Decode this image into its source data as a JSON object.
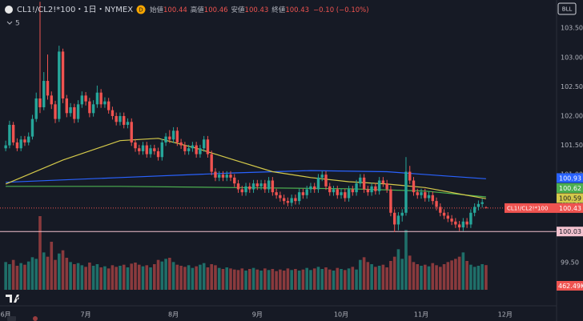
{
  "chart_data": {
    "type": "candlestick",
    "title": "CL1!/CL2!*100・1日・NYMEX",
    "interval_badge": "D",
    "indicator_count": "5",
    "corner_label": "BLL",
    "symbol": "CL1!/CL2!*100",
    "ohlc_labels": [
      "始値",
      "高値",
      "安値",
      "終値"
    ],
    "change": "−0.10 (−0.10%)",
    "colors": {
      "up": "#26a69a",
      "down": "#ef5350",
      "up_volume": "#1f6f69",
      "down_volume": "#8a3a3d",
      "hline": "#f3c2cf"
    },
    "xlim": [
      -1.5,
      144.5
    ],
    "xticks": [
      {
        "value": 0,
        "label": "6月"
      },
      {
        "value": 21,
        "label": "7月"
      },
      {
        "value": 44,
        "label": "8月"
      },
      {
        "value": 66,
        "label": "9月"
      },
      {
        "value": 88,
        "label": "10月"
      },
      {
        "value": 109,
        "label": "11月"
      },
      {
        "value": 131,
        "label": "12月"
      }
    ],
    "ylim": [
      98.79,
      103.98
    ],
    "yticks": [
      {
        "value": 99.5,
        "label": "99.50"
      },
      {
        "value": 100,
        "label": "100.00"
      },
      {
        "value": 100.5,
        "label": "100.50"
      },
      {
        "value": 101,
        "label": "101.00"
      },
      {
        "value": 101.5,
        "label": "101.50"
      },
      {
        "value": 102,
        "label": "102.00"
      },
      {
        "value": 102.5,
        "label": "102.50"
      },
      {
        "value": 103,
        "label": "103.00"
      },
      {
        "value": 103.5,
        "label": "103.50"
      }
    ],
    "grid": true,
    "hline": 100.03,
    "ohlc": [
      [
        101.45,
        101.58,
        101.4,
        101.5
      ],
      [
        101.5,
        101.92,
        101.45,
        101.85
      ],
      [
        101.85,
        101.9,
        101.5,
        101.55
      ],
      [
        101.55,
        101.62,
        101.4,
        101.45
      ],
      [
        101.45,
        101.66,
        101.4,
        101.6
      ],
      [
        101.6,
        101.66,
        101.49,
        101.55
      ],
      [
        101.55,
        101.72,
        101.5,
        101.65
      ],
      [
        101.65,
        102.02,
        101.6,
        101.95
      ],
      [
        101.95,
        102.4,
        101.9,
        102.3
      ],
      [
        102.3,
        103.95,
        102.05,
        102.15
      ],
      [
        102.15,
        102.75,
        102.1,
        102.6
      ],
      [
        102.6,
        103.05,
        102.28,
        102.35
      ],
      [
        102.35,
        102.42,
        102.12,
        102.2
      ],
      [
        102.2,
        102.26,
        101.88,
        101.95
      ],
      [
        101.95,
        103.2,
        101.9,
        103.1
      ],
      [
        103.1,
        103.15,
        102.22,
        102.3
      ],
      [
        102.3,
        102.36,
        101.98,
        102.05
      ],
      [
        102.05,
        102.22,
        101.99,
        102.15
      ],
      [
        102.15,
        102.21,
        101.88,
        101.95
      ],
      [
        101.95,
        102.27,
        101.89,
        102.2
      ],
      [
        102.2,
        102.42,
        102.14,
        102.35
      ],
      [
        102.35,
        102.41,
        102.18,
        102.25
      ],
      [
        102.25,
        102.31,
        101.98,
        102.05
      ],
      [
        102.05,
        102.27,
        101.99,
        102.2
      ],
      [
        102.2,
        102.52,
        102.14,
        102.4
      ],
      [
        102.4,
        102.46,
        102.14,
        102.2
      ],
      [
        102.2,
        102.32,
        102.14,
        102.25
      ],
      [
        102.25,
        102.31,
        102.04,
        102.1
      ],
      [
        102.1,
        102.16,
        101.94,
        102.0
      ],
      [
        102.0,
        102.06,
        101.84,
        101.9
      ],
      [
        101.9,
        102.06,
        101.84,
        102.0
      ],
      [
        102.0,
        102.06,
        101.79,
        101.85
      ],
      [
        101.85,
        101.96,
        101.79,
        101.9
      ],
      [
        101.9,
        101.96,
        101.49,
        101.55
      ],
      [
        101.55,
        101.61,
        101.39,
        101.45
      ],
      [
        101.45,
        101.51,
        101.34,
        101.4
      ],
      [
        101.4,
        101.56,
        101.34,
        101.5
      ],
      [
        101.5,
        101.56,
        101.29,
        101.35
      ],
      [
        101.35,
        101.51,
        101.29,
        101.45
      ],
      [
        101.45,
        101.51,
        101.34,
        101.4
      ],
      [
        101.4,
        101.46,
        101.24,
        101.3
      ],
      [
        101.3,
        101.61,
        101.24,
        101.55
      ],
      [
        101.55,
        101.71,
        101.49,
        101.65
      ],
      [
        101.65,
        101.76,
        101.54,
        101.6
      ],
      [
        101.6,
        101.81,
        101.54,
        101.75
      ],
      [
        101.75,
        101.81,
        101.49,
        101.55
      ],
      [
        101.55,
        101.61,
        101.44,
        101.5
      ],
      [
        101.5,
        101.56,
        101.34,
        101.4
      ],
      [
        101.4,
        101.51,
        101.34,
        101.45
      ],
      [
        101.45,
        101.56,
        101.39,
        101.5
      ],
      [
        101.5,
        101.56,
        101.29,
        101.35
      ],
      [
        101.35,
        101.51,
        101.29,
        101.45
      ],
      [
        101.45,
        101.66,
        101.39,
        101.6
      ],
      [
        101.6,
        101.66,
        101.29,
        101.35
      ],
      [
        101.35,
        101.41,
        100.99,
        101.05
      ],
      [
        101.05,
        101.11,
        100.89,
        100.95
      ],
      [
        100.95,
        101.06,
        100.89,
        101.0
      ],
      [
        101.0,
        101.06,
        100.89,
        100.95
      ],
      [
        100.95,
        101.06,
        100.89,
        101.0
      ],
      [
        101.0,
        101.06,
        100.89,
        100.95
      ],
      [
        100.95,
        101.01,
        100.79,
        100.85
      ],
      [
        100.85,
        100.91,
        100.69,
        100.75
      ],
      [
        100.75,
        100.81,
        100.64,
        100.7
      ],
      [
        100.7,
        100.86,
        100.64,
        100.8
      ],
      [
        100.8,
        100.86,
        100.69,
        100.75
      ],
      [
        100.75,
        100.91,
        100.69,
        100.85
      ],
      [
        100.85,
        100.91,
        100.74,
        100.8
      ],
      [
        100.8,
        100.91,
        100.74,
        100.85
      ],
      [
        100.85,
        100.91,
        100.69,
        100.75
      ],
      [
        100.75,
        100.96,
        100.69,
        100.9
      ],
      [
        100.9,
        100.96,
        100.64,
        100.7
      ],
      [
        100.7,
        100.76,
        100.59,
        100.65
      ],
      [
        100.65,
        100.71,
        100.54,
        100.6
      ],
      [
        100.6,
        100.66,
        100.49,
        100.55
      ],
      [
        100.55,
        100.61,
        100.46,
        100.52
      ],
      [
        100.52,
        100.66,
        100.46,
        100.6
      ],
      [
        100.6,
        100.66,
        100.49,
        100.55
      ],
      [
        100.55,
        100.76,
        100.49,
        100.7
      ],
      [
        100.7,
        100.76,
        100.59,
        100.65
      ],
      [
        100.65,
        100.81,
        100.59,
        100.75
      ],
      [
        100.75,
        100.86,
        100.69,
        100.8
      ],
      [
        100.8,
        100.86,
        100.69,
        100.75
      ],
      [
        100.75,
        101.01,
        100.69,
        100.95
      ],
      [
        100.95,
        101.06,
        100.89,
        101.0
      ],
      [
        101.0,
        101.06,
        100.74,
        100.8
      ],
      [
        100.8,
        100.86,
        100.64,
        100.7
      ],
      [
        100.7,
        100.81,
        100.64,
        100.75
      ],
      [
        100.75,
        100.81,
        100.59,
        100.65
      ],
      [
        100.65,
        100.76,
        100.59,
        100.7
      ],
      [
        100.7,
        100.76,
        100.54,
        100.6
      ],
      [
        100.6,
        100.81,
        100.54,
        100.75
      ],
      [
        100.75,
        100.81,
        100.64,
        100.7
      ],
      [
        100.7,
        100.91,
        100.64,
        100.85
      ],
      [
        100.85,
        101.01,
        100.79,
        100.95
      ],
      [
        100.95,
        101.01,
        100.69,
        100.75
      ],
      [
        100.75,
        100.81,
        100.64,
        100.7
      ],
      [
        100.7,
        100.86,
        100.64,
        100.8
      ],
      [
        100.8,
        100.86,
        100.66,
        100.72
      ],
      [
        100.72,
        100.96,
        100.66,
        100.9
      ],
      [
        100.9,
        100.96,
        100.79,
        100.85
      ],
      [
        100.85,
        100.91,
        100.69,
        100.75
      ],
      [
        100.75,
        100.81,
        100.29,
        100.35
      ],
      [
        100.35,
        100.41,
        100.02,
        100.15
      ],
      [
        100.15,
        100.36,
        100.05,
        100.3
      ],
      [
        100.3,
        100.41,
        100.2,
        100.35
      ],
      [
        100.35,
        101.3,
        100.3,
        101.05
      ],
      [
        101.05,
        101.15,
        100.84,
        100.9
      ],
      [
        100.9,
        100.96,
        100.64,
        100.7
      ],
      [
        100.7,
        100.76,
        100.59,
        100.65
      ],
      [
        100.65,
        100.76,
        100.59,
        100.7
      ],
      [
        100.7,
        100.76,
        100.54,
        100.6
      ],
      [
        100.6,
        100.71,
        100.54,
        100.65
      ],
      [
        100.65,
        100.71,
        100.49,
        100.55
      ],
      [
        100.55,
        100.61,
        100.39,
        100.45
      ],
      [
        100.45,
        100.51,
        100.29,
        100.35
      ],
      [
        100.35,
        100.41,
        100.24,
        100.3
      ],
      [
        100.3,
        100.36,
        100.19,
        100.25
      ],
      [
        100.25,
        100.31,
        100.14,
        100.2
      ],
      [
        100.2,
        100.26,
        100.09,
        100.15
      ],
      [
        100.15,
        100.21,
        100.04,
        100.1
      ],
      [
        100.1,
        100.26,
        100.04,
        100.2
      ],
      [
        100.2,
        100.26,
        100.09,
        100.15
      ],
      [
        100.15,
        100.41,
        100.09,
        100.35
      ],
      [
        100.35,
        100.51,
        100.29,
        100.45
      ],
      [
        100.45,
        100.56,
        100.39,
        100.5
      ],
      [
        100.5,
        100.59,
        100.44,
        100.53
      ],
      [
        100.44,
        100.46,
        100.43,
        100.43
      ]
    ],
    "volume": [
      520,
      480,
      560,
      450,
      500,
      470,
      530,
      610,
      580,
      1380,
      700,
      620,
      900,
      560,
      680,
      740,
      600,
      520,
      480,
      500,
      460,
      430,
      510,
      450,
      480,
      420,
      440,
      400,
      460,
      430,
      450,
      470,
      420,
      490,
      510,
      470,
      440,
      460,
      420,
      480,
      560,
      530,
      580,
      600,
      520,
      470,
      450,
      430,
      460,
      410,
      440,
      470,
      500,
      420,
      480,
      460,
      410,
      390,
      420,
      400,
      380,
      370,
      400,
      360,
      390,
      410,
      380,
      360,
      400,
      370,
      390,
      350,
      380,
      360,
      400,
      370,
      390,
      360,
      380,
      410,
      370,
      400,
      430,
      390,
      420,
      380,
      360,
      410,
      390,
      370,
      400,
      430,
      380,
      560,
      610,
      520,
      480,
      430,
      450,
      470,
      420,
      540,
      620,
      760,
      580,
      1120,
      640,
      520,
      480,
      450,
      470,
      440,
      500,
      460,
      430,
      480,
      520,
      550,
      580,
      620,
      700,
      540,
      470,
      430,
      450,
      480,
      462.49
    ],
    "volume_last_label": "462.49K",
    "vlim": [
      0,
      1500
    ],
    "series": [
      {
        "color": "#2962ff",
        "x": [
          0,
          30,
          60,
          80,
          100,
          115,
          126
        ],
        "values": [
          100.87,
          100.95,
          101.03,
          101.07,
          101.05,
          100.98,
          100.93
        ]
      },
      {
        "color": "#4caf50",
        "x": [
          0,
          30,
          60,
          90,
          110,
          126
        ],
        "values": [
          100.8,
          100.8,
          100.78,
          100.76,
          100.72,
          100.62
        ]
      },
      {
        "color": "#d4c94a",
        "x": [
          0,
          15,
          30,
          40,
          50,
          60,
          70,
          80,
          90,
          100,
          110,
          120,
          126
        ],
        "values": [
          100.84,
          101.25,
          101.58,
          101.62,
          101.45,
          101.25,
          101.05,
          100.95,
          100.88,
          100.84,
          100.78,
          100.66,
          100.59
        ]
      }
    ]
  }
}
